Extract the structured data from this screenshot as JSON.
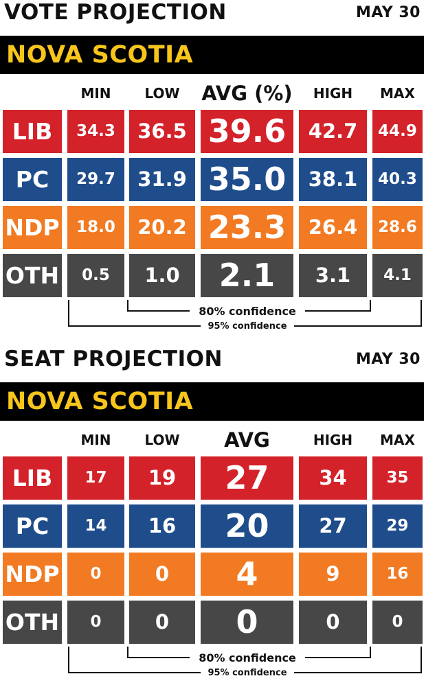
{
  "headers": [
    "MIN",
    "LOW",
    "HIGH",
    "MAX"
  ],
  "vote": {
    "title": "VOTE PROJECTION",
    "date": "MAY 30",
    "region": "NOVA SCOTIA",
    "avg_header": "AVG (%)",
    "rows": [
      {
        "party": "LIB",
        "color": "#d4222a",
        "values": [
          "34.3",
          "36.5",
          "39.6",
          "42.7",
          "44.9"
        ]
      },
      {
        "party": "PC",
        "color": "#1f4d8c",
        "values": [
          "29.7",
          "31.9",
          "35.0",
          "38.1",
          "40.3"
        ]
      },
      {
        "party": "NDP",
        "color": "#f27a22",
        "values": [
          "18.0",
          "20.2",
          "23.3",
          "26.4",
          "28.6"
        ]
      },
      {
        "party": "OTH",
        "color": "#474747",
        "values": [
          "0.5",
          "1.0",
          "2.1",
          "3.1",
          "4.1"
        ]
      }
    ],
    "conf80": "80% confidence",
    "conf95": "95% confidence"
  },
  "seat": {
    "title": "SEAT PROJECTION",
    "date": "MAY 30",
    "region": "NOVA SCOTIA",
    "avg_header": "AVG",
    "rows": [
      {
        "party": "LIB",
        "color": "#d4222a",
        "values": [
          "17",
          "19",
          "27",
          "34",
          "35"
        ]
      },
      {
        "party": "PC",
        "color": "#1f4d8c",
        "values": [
          "14",
          "16",
          "20",
          "27",
          "29"
        ]
      },
      {
        "party": "NDP",
        "color": "#f27a22",
        "values": [
          "0",
          "0",
          "4",
          "9",
          "16"
        ]
      },
      {
        "party": "OTH",
        "color": "#474747",
        "values": [
          "0",
          "0",
          "0",
          "0",
          "0"
        ]
      }
    ],
    "conf80": "80% confidence",
    "conf95": "95% confidence"
  }
}
